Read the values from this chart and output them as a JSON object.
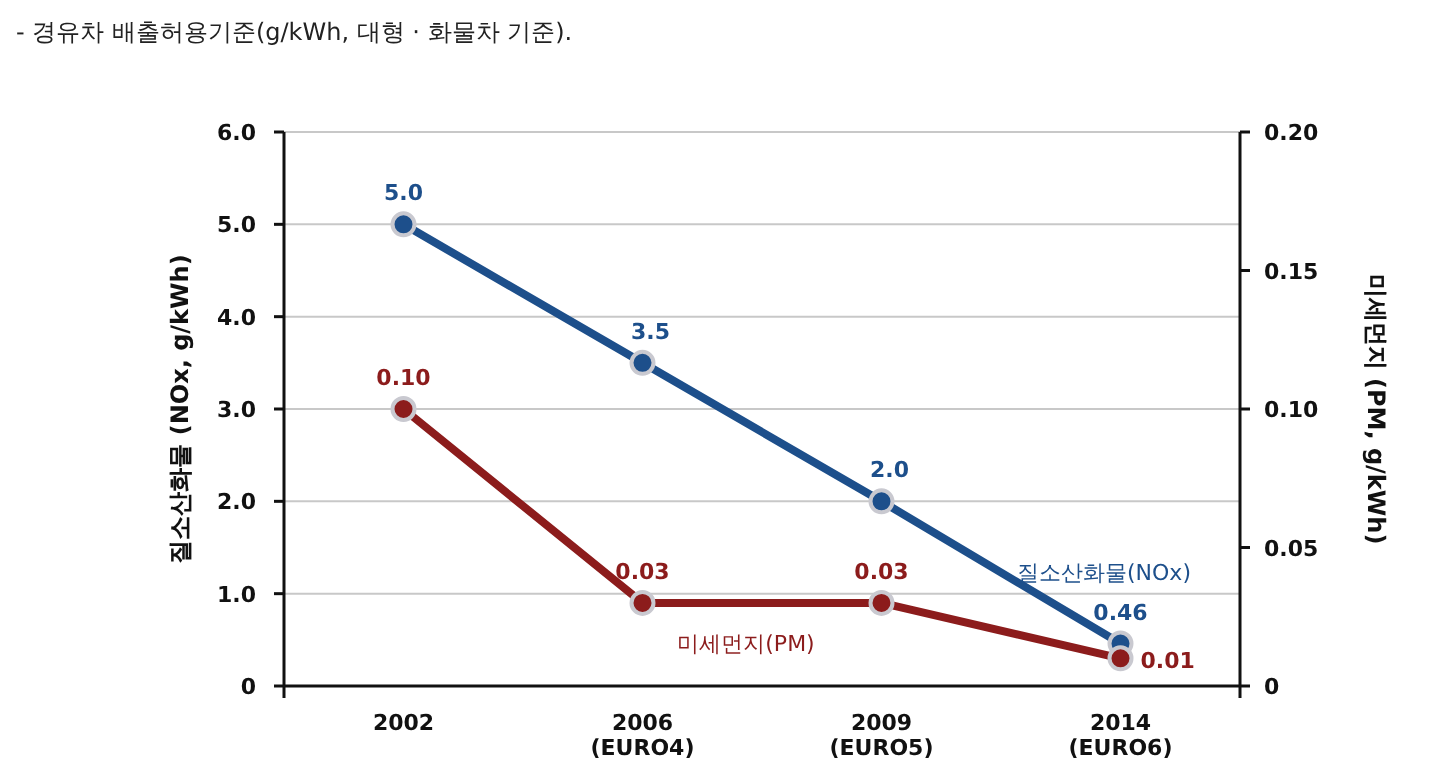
{
  "chart_data": {
    "type": "line",
    "title": "- 경유차 배출허용기준(g/kWh, 대형 · 화물차 기준).",
    "categories": [
      "2002",
      "2006\n(EURO4)",
      "2009\n(EURO5)",
      "2014\n(EURO6)"
    ],
    "ylabel": "질소산화물 (NOx, g/kWh)",
    "y2label": "미세먼지 (PM, g/kWh)",
    "ylim": [
      0,
      6
    ],
    "yticks": [
      {
        "value": 0,
        "label": "0"
      },
      {
        "value": 1,
        "label": "1.0"
      },
      {
        "value": 2,
        "label": "2.0"
      },
      {
        "value": 3,
        "label": "3.0"
      },
      {
        "value": 4,
        "label": "4.0"
      },
      {
        "value": 5,
        "label": "5.0"
      },
      {
        "value": 6,
        "label": "6.0"
      }
    ],
    "y2lim": [
      0,
      0.2
    ],
    "y2ticks": [
      {
        "value": 0,
        "label": "0"
      },
      0.05,
      {
        "value": 0.1,
        "label": "0.10"
      },
      0.15,
      {
        "value": 0.2,
        "label": "0.20"
      }
    ],
    "grid": "y",
    "marker": "circle",
    "line_style": "solid",
    "series": [
      {
        "name": "질소산화물(NOx)",
        "color": "#1d4f8b",
        "values": [
          5.0,
          3.5,
          2.0,
          0.46
        ],
        "value_labels": [
          "5.0",
          "3.5",
          "2.0",
          "0.46"
        ]
      },
      {
        "name": "미세먼지(PM)",
        "color": "#8c1c1c",
        "axis": "y2",
        "values": [
          0.1,
          0.03,
          0.03,
          0.01
        ],
        "value_labels": [
          "0.10",
          "0.03",
          "0.03",
          "0.01"
        ]
      }
    ]
  }
}
